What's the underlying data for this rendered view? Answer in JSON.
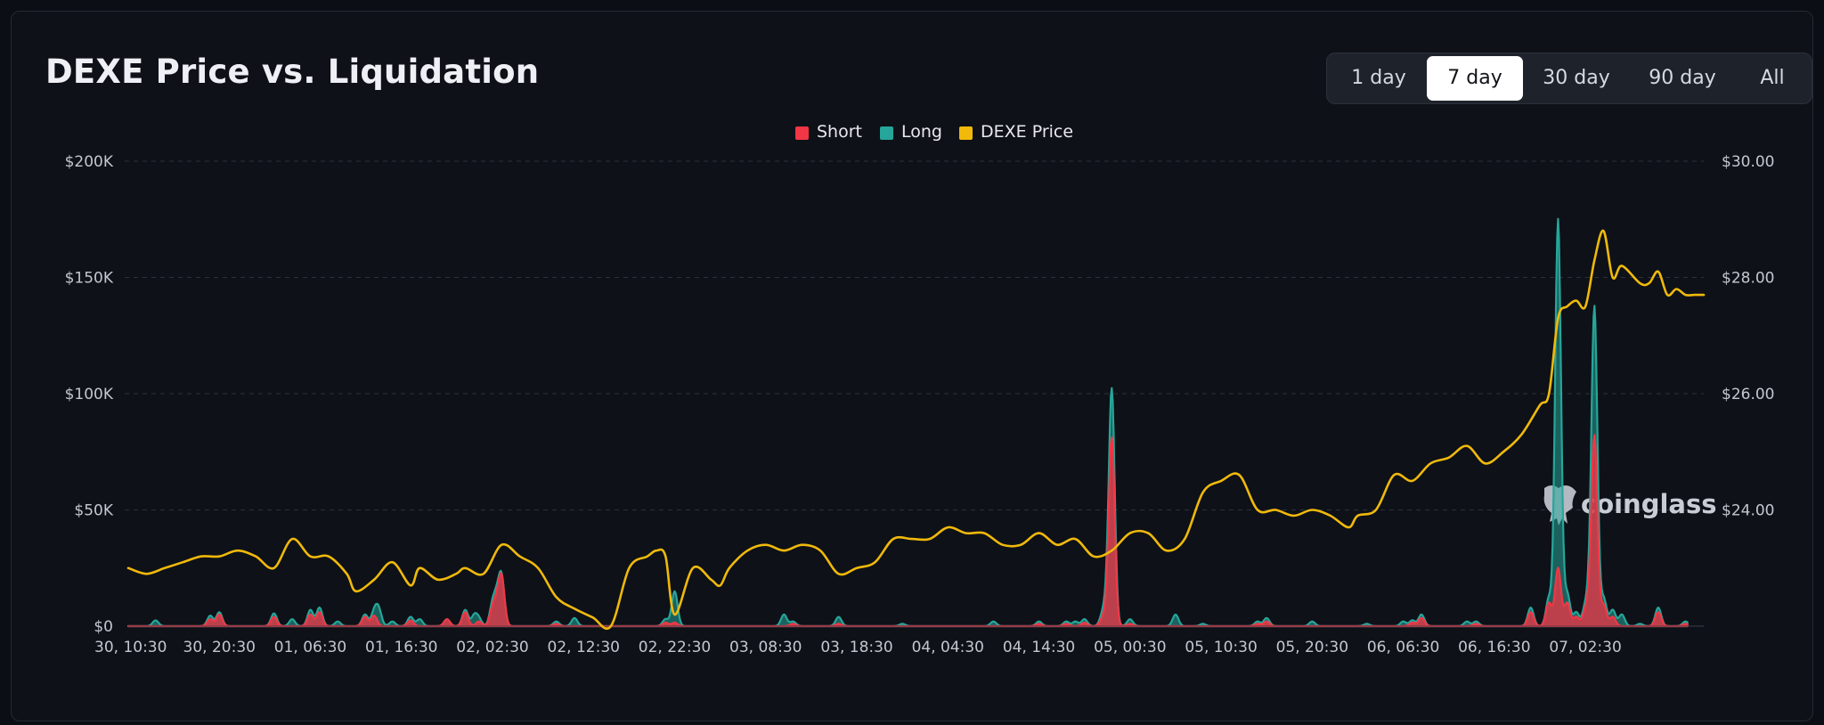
{
  "header": {
    "title": "DEXE Price vs. Liquidation"
  },
  "range_selector": {
    "options": [
      "1 day",
      "7 day",
      "30 day",
      "90 day",
      "All"
    ],
    "selected": "7 day"
  },
  "watermark": "coinglass",
  "colors": {
    "short": "#f23645",
    "long": "#26a69a",
    "price": "#f0b90b",
    "background": "#0e1117",
    "grid": "#2c313b",
    "text": "#c4c7cf"
  },
  "chart_data": {
    "type": "area",
    "title": "DEXE Price vs. Liquidation",
    "legend": [
      "Short",
      "Long",
      "DEXE Price"
    ],
    "legend_position": "top-center",
    "x_tick_labels": [
      "30, 10:30",
      "30, 20:30",
      "01, 06:30",
      "01, 16:30",
      "02, 02:30",
      "02, 12:30",
      "02, 22:30",
      "03, 08:30",
      "03, 18:30",
      "04, 04:30",
      "04, 14:30",
      "05, 00:30",
      "05, 10:30",
      "05, 20:30",
      "06, 06:30",
      "06, 16:30",
      "07, 02:30"
    ],
    "x_range_hours": [
      0,
      173
    ],
    "y_left": {
      "label": "",
      "range": [
        0,
        200000
      ],
      "ticks": [
        0,
        50000,
        100000,
        150000,
        200000
      ],
      "tick_labels": [
        "$0",
        "$50K",
        "$100K",
        "$150K",
        "$200K"
      ]
    },
    "y_right": {
      "label": "",
      "range": [
        22,
        30
      ],
      "ticks": [
        24,
        26,
        28,
        30
      ],
      "tick_labels": [
        "$24.00",
        "$26.00",
        "$28.00",
        "$30.00"
      ]
    },
    "grid": true,
    "series": [
      {
        "name": "Long",
        "axis": "left",
        "type": "area",
        "x": [
          3,
          9,
          10,
          16,
          18,
          20,
          21,
          23,
          26,
          27,
          27.5,
          29,
          31,
          32,
          35,
          37,
          38,
          38.5,
          40,
          40.5,
          41,
          47,
          49,
          59,
          60,
          72,
          73,
          78,
          85,
          95,
          100,
          103,
          104,
          105,
          107,
          107.5,
          108,
          110,
          115,
          118,
          124,
          125,
          130,
          136,
          140,
          141,
          142,
          147,
          148,
          154,
          156,
          157,
          158,
          159,
          160,
          160.5,
          161,
          162,
          163,
          164,
          166,
          168,
          171
        ],
        "y": [
          2500,
          4500,
          6000,
          5500,
          3000,
          7000,
          8000,
          2000,
          5000,
          6000,
          7000,
          2000,
          4000,
          3000,
          3000,
          7000,
          4500,
          3000,
          9000,
          10000,
          20000,
          2000,
          3500,
          3000,
          15000,
          5000,
          2000,
          4000,
          1000,
          2000,
          2000,
          2000,
          2000,
          3000,
          5000,
          8000,
          100000,
          3000,
          5000,
          1000,
          2000,
          3500,
          2000,
          1000,
          2000,
          2500,
          5000,
          2000,
          2000,
          8000,
          12000,
          175000,
          14000,
          6000,
          8000,
          9000,
          135000,
          12000,
          7000,
          5000,
          1000,
          8000,
          2000
        ]
      },
      {
        "name": "Short",
        "axis": "left",
        "type": "area",
        "x": [
          9,
          10,
          16,
          20,
          21,
          26,
          27,
          31,
          35,
          37,
          38.5,
          40,
          40.5,
          41,
          47,
          59,
          60,
          73,
          78,
          100,
          103,
          105,
          107,
          107.5,
          108,
          110,
          124,
          125,
          141,
          142,
          148,
          154,
          156,
          157,
          158,
          159,
          160,
          160.5,
          161,
          162,
          163,
          168,
          171
        ],
        "y": [
          3000,
          5000,
          4000,
          5000,
          6000,
          4000,
          4500,
          2500,
          3000,
          6000,
          2000,
          7000,
          8000,
          20000,
          1000,
          1500,
          1500,
          1000,
          1000,
          1000,
          1000,
          1500,
          3000,
          4000,
          80000,
          1000,
          1000,
          2000,
          1500,
          3500,
          1000,
          6000,
          10000,
          25000,
          10000,
          4000,
          6000,
          7000,
          80000,
          9000,
          4000,
          6000,
          1000
        ]
      },
      {
        "name": "DEXE Price",
        "axis": "right",
        "type": "line",
        "x": [
          0,
          2,
          4,
          6,
          8,
          10,
          12,
          14,
          16,
          18,
          20,
          22,
          24,
          25,
          27,
          29,
          31,
          32,
          34,
          36,
          37,
          39,
          41,
          43,
          45,
          47,
          49,
          51,
          53,
          55,
          57,
          58,
          59,
          60,
          62,
          64,
          65,
          66,
          68,
          70,
          72,
          74,
          76,
          78,
          80,
          82,
          84,
          86,
          88,
          90,
          92,
          94,
          96,
          98,
          100,
          102,
          104,
          106,
          108,
          110,
          112,
          114,
          116,
          118,
          120,
          122,
          124,
          126,
          128,
          130,
          132,
          134,
          135,
          137,
          139,
          141,
          143,
          145,
          147,
          149,
          151,
          153,
          155,
          156,
          157,
          158,
          159,
          160,
          161,
          162,
          163,
          164,
          166,
          167,
          168,
          169,
          170,
          171,
          172,
          173
        ],
        "y": [
          23.0,
          22.9,
          23.0,
          23.1,
          23.2,
          23.2,
          23.3,
          23.2,
          23.0,
          23.5,
          23.2,
          23.2,
          22.9,
          22.6,
          22.8,
          23.1,
          22.7,
          23.0,
          22.8,
          22.9,
          23.0,
          22.9,
          23.4,
          23.2,
          23.0,
          22.5,
          22.3,
          22.15,
          22.0,
          23.0,
          23.2,
          23.3,
          23.2,
          22.2,
          23.0,
          22.8,
          22.7,
          23.0,
          23.3,
          23.4,
          23.3,
          23.4,
          23.3,
          22.9,
          23.0,
          23.1,
          23.5,
          23.5,
          23.5,
          23.7,
          23.6,
          23.6,
          23.4,
          23.4,
          23.6,
          23.4,
          23.5,
          23.2,
          23.3,
          23.6,
          23.6,
          23.3,
          23.5,
          24.3,
          24.5,
          24.6,
          24.0,
          24.0,
          23.9,
          24.0,
          23.9,
          23.7,
          23.9,
          24.0,
          24.6,
          24.5,
          24.8,
          24.9,
          25.1,
          24.8,
          25.0,
          25.3,
          25.8,
          26.0,
          27.3,
          27.5,
          27.6,
          27.5,
          28.3,
          28.8,
          28.0,
          28.2,
          27.9,
          27.9,
          28.1,
          27.7,
          27.8,
          27.7,
          27.7,
          27.7
        ]
      }
    ]
  }
}
